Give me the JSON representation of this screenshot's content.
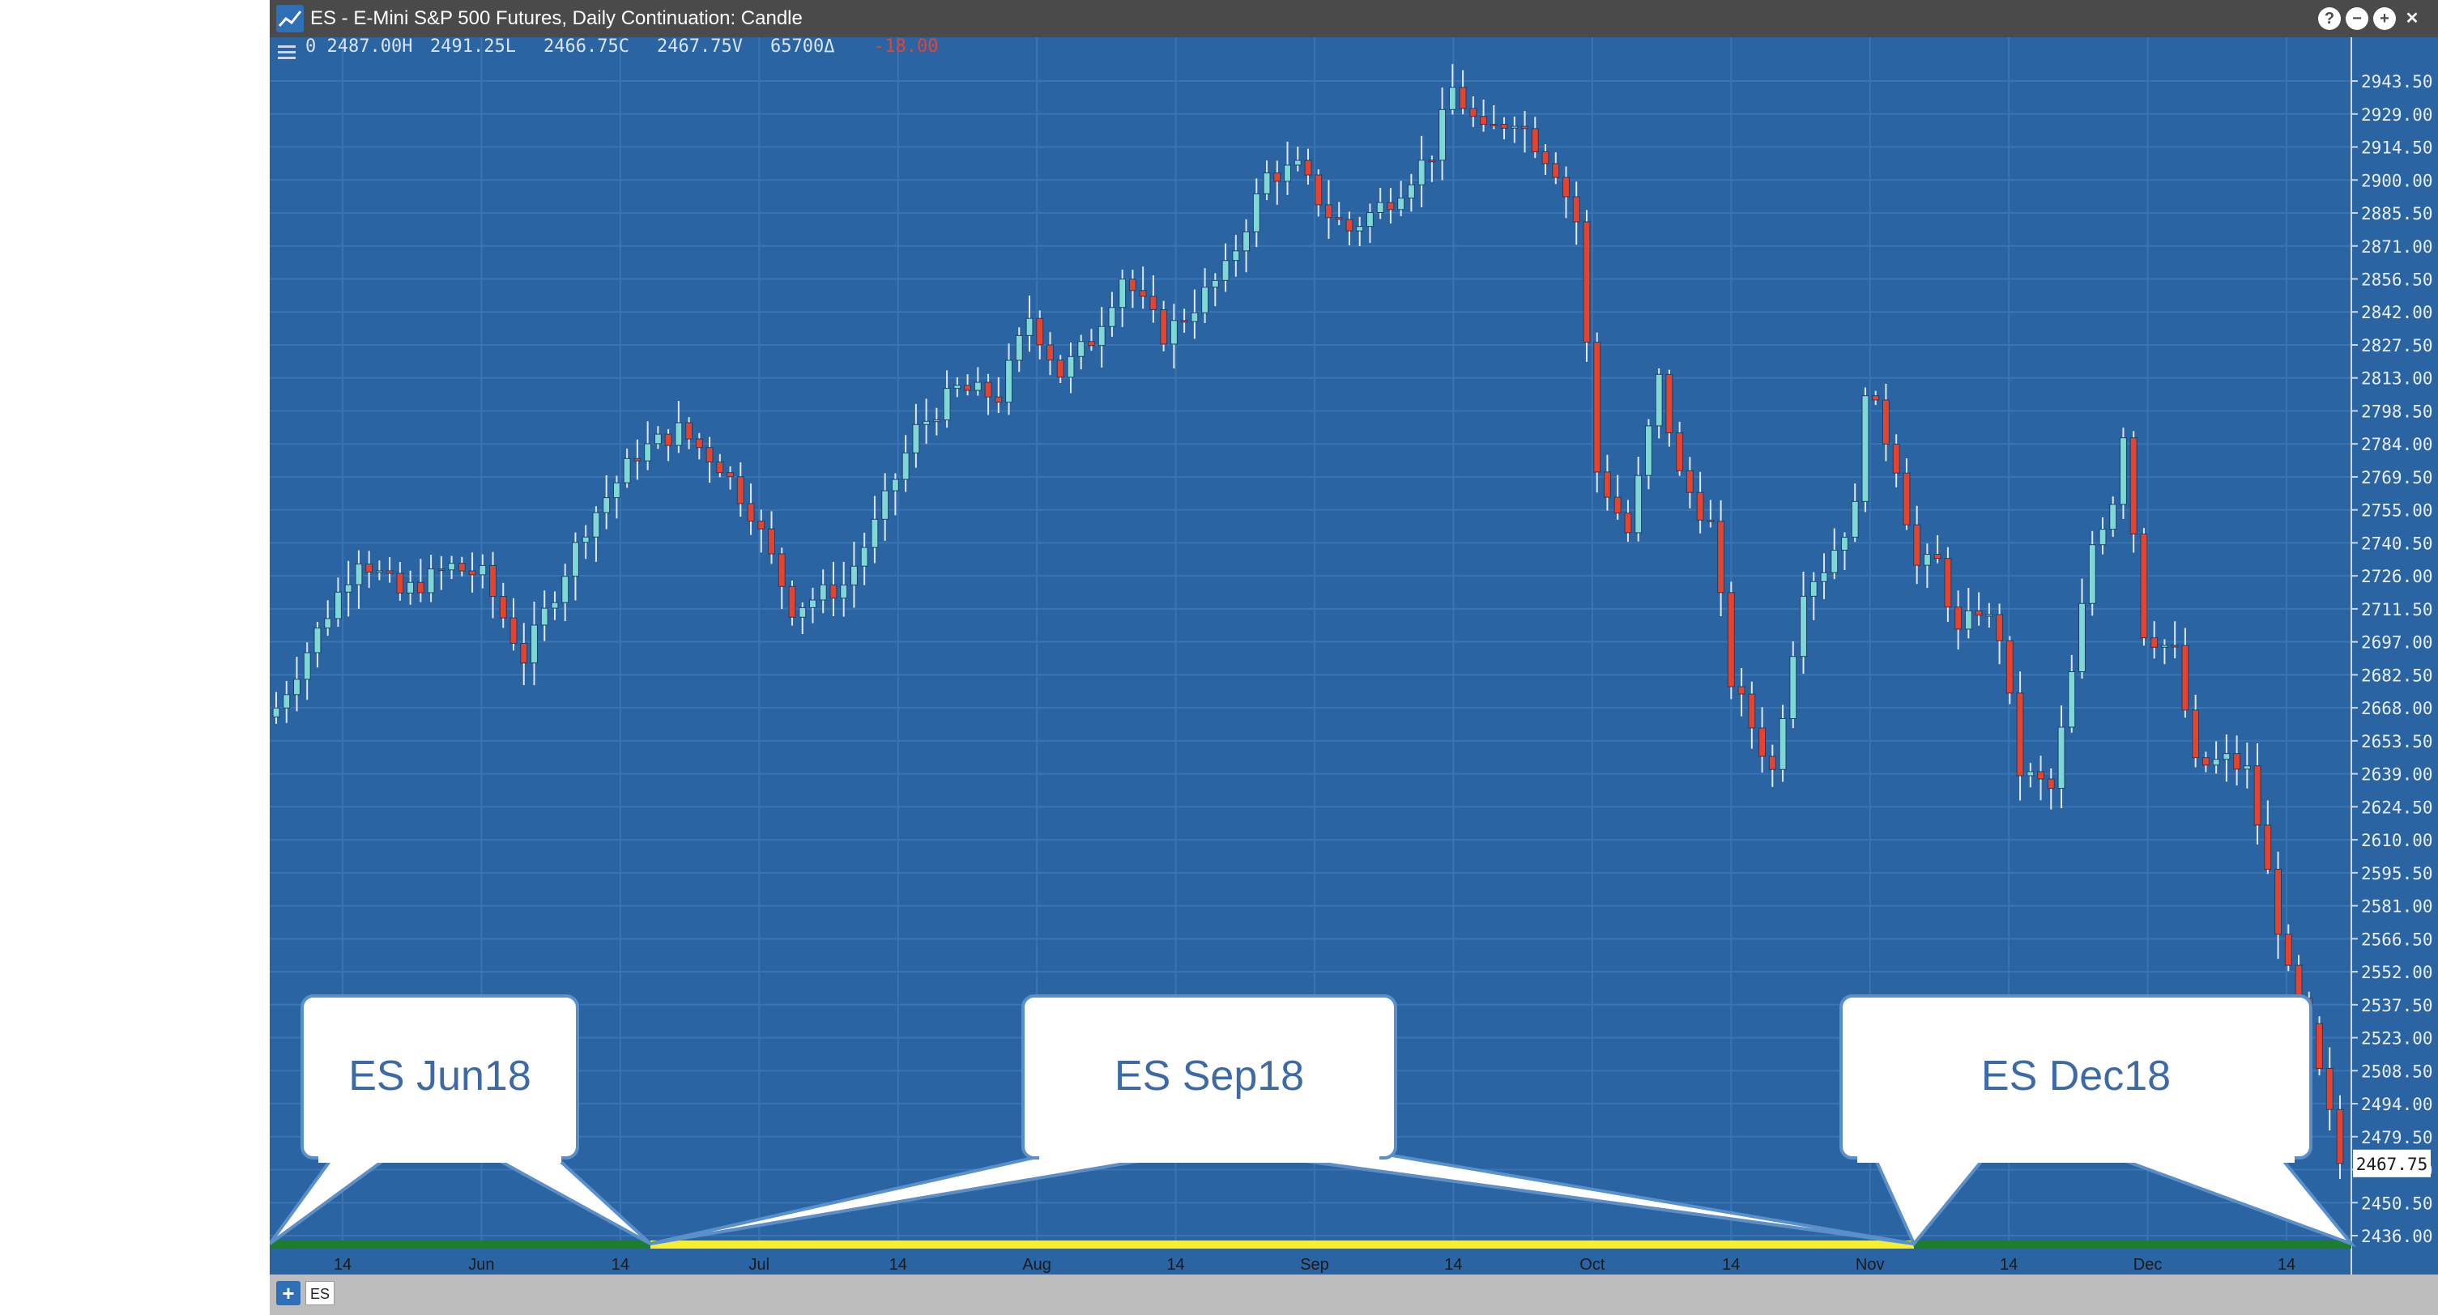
{
  "window": {
    "title": "ES - E-Mini S&P 500 Futures, Daily Continuation: Candle",
    "help_icon": "?",
    "minimize_icon": "−",
    "maximize_icon": "+",
    "close_icon": "✕"
  },
  "readout": {
    "open": "0 2487.00H",
    "high": "2491.25L",
    "low": "2466.75C",
    "close": "2467.75V",
    "volume": "65700Δ",
    "change": "-18.00"
  },
  "colors": {
    "background": "#2a64a3",
    "grid": "#3a75b3",
    "up_candle": "#7fd8d6",
    "down_candle": "#e5432e",
    "contract_green": "#1e7d2d",
    "contract_yellow": "#f7ee2f",
    "callout_fill": "#ffffff",
    "callout_stroke": "#5b8fc9",
    "callout_text": "#3d6aa6"
  },
  "bottom_bar": {
    "add_label": "+",
    "tab_label": "ES"
  },
  "chart_data": {
    "type": "candlestick",
    "title": "ES - E-Mini S&P 500 Futures, Daily Continuation: Candle",
    "x_tick_labels": [
      "14",
      "Jun",
      "14",
      "Jul",
      "14",
      "Aug",
      "14",
      "Sep",
      "14",
      "Oct",
      "14",
      "Nov",
      "14",
      "Dec",
      "14"
    ],
    "y_tick_labels": [
      "2943.50",
      "2929.00",
      "2914.50",
      "2900.00",
      "2885.50",
      "2871.00",
      "2856.50",
      "2842.00",
      "2827.50",
      "2813.00",
      "2798.50",
      "2784.00",
      "2769.50",
      "2755.00",
      "2740.50",
      "2726.00",
      "2711.50",
      "2697.00",
      "2682.50",
      "2668.00",
      "2653.50",
      "2639.00",
      "2624.50",
      "2610.00",
      "2595.50",
      "2581.00",
      "2566.50",
      "2552.00",
      "2537.50",
      "2523.00",
      "2508.50",
      "2494.00",
      "2479.50",
      "2465.00",
      "2450.50",
      "2436.00"
    ],
    "ylim": [
      2436.0,
      2948.5
    ],
    "last_price_label": "2467.75",
    "last_price": 2467.75,
    "close_points": [
      {
        "i": 0,
        "c": 2668
      },
      {
        "i": 8,
        "c": 2735
      },
      {
        "i": 12,
        "c": 2718
      },
      {
        "i": 17,
        "c": 2730
      },
      {
        "i": 20,
        "c": 2726
      },
      {
        "i": 24,
        "c": 2690
      },
      {
        "i": 30,
        "c": 2748
      },
      {
        "i": 35,
        "c": 2780
      },
      {
        "i": 39,
        "c": 2790
      },
      {
        "i": 43,
        "c": 2775
      },
      {
        "i": 46,
        "c": 2755
      },
      {
        "i": 50,
        "c": 2712
      },
      {
        "i": 55,
        "c": 2722
      },
      {
        "i": 58,
        "c": 2748
      },
      {
        "i": 62,
        "c": 2790
      },
      {
        "i": 66,
        "c": 2808
      },
      {
        "i": 70,
        "c": 2805
      },
      {
        "i": 73,
        "c": 2840
      },
      {
        "i": 76,
        "c": 2815
      },
      {
        "i": 79,
        "c": 2830
      },
      {
        "i": 82,
        "c": 2858
      },
      {
        "i": 86,
        "c": 2832
      },
      {
        "i": 88,
        "c": 2840
      },
      {
        "i": 92,
        "c": 2860
      },
      {
        "i": 96,
        "c": 2902
      },
      {
        "i": 99,
        "c": 2905
      },
      {
        "i": 102,
        "c": 2885
      },
      {
        "i": 104,
        "c": 2878
      },
      {
        "i": 108,
        "c": 2892
      },
      {
        "i": 112,
        "c": 2912
      },
      {
        "i": 114,
        "c": 2940
      },
      {
        "i": 117,
        "c": 2920
      },
      {
        "i": 120,
        "c": 2928
      },
      {
        "i": 124,
        "c": 2905
      },
      {
        "i": 126,
        "c": 2882
      },
      {
        "i": 128,
        "c": 2772
      },
      {
        "i": 131,
        "c": 2745
      },
      {
        "i": 134,
        "c": 2812
      },
      {
        "i": 136,
        "c": 2770
      },
      {
        "i": 139,
        "c": 2748
      },
      {
        "i": 141,
        "c": 2680
      },
      {
        "i": 143,
        "c": 2660
      },
      {
        "i": 145,
        "c": 2640
      },
      {
        "i": 148,
        "c": 2722
      },
      {
        "i": 150,
        "c": 2730
      },
      {
        "i": 153,
        "c": 2755
      },
      {
        "i": 154,
        "c": 2810
      },
      {
        "i": 157,
        "c": 2775
      },
      {
        "i": 159,
        "c": 2730
      },
      {
        "i": 161,
        "c": 2732
      },
      {
        "i": 163,
        "c": 2700
      },
      {
        "i": 165,
        "c": 2712
      },
      {
        "i": 167,
        "c": 2700
      },
      {
        "i": 169,
        "c": 2640
      },
      {
        "i": 172,
        "c": 2632
      },
      {
        "i": 174,
        "c": 2682
      },
      {
        "i": 176,
        "c": 2740
      },
      {
        "i": 178,
        "c": 2760
      },
      {
        "i": 179,
        "c": 2790
      },
      {
        "i": 181,
        "c": 2702
      },
      {
        "i": 184,
        "c": 2692
      },
      {
        "i": 186,
        "c": 2642
      },
      {
        "i": 189,
        "c": 2645
      },
      {
        "i": 191,
        "c": 2640
      },
      {
        "i": 193,
        "c": 2595
      },
      {
        "i": 195,
        "c": 2550
      },
      {
        "i": 197,
        "c": 2525
      },
      {
        "i": 199,
        "c": 2488
      },
      {
        "i": 200,
        "c": 2467.75
      }
    ],
    "contracts": [
      {
        "label": "ES Jun18",
        "color": "green"
      },
      {
        "label": "ES Sep18",
        "color": "yellow"
      },
      {
        "label": "ES Dec18",
        "color": "green"
      }
    ],
    "grid": true
  }
}
